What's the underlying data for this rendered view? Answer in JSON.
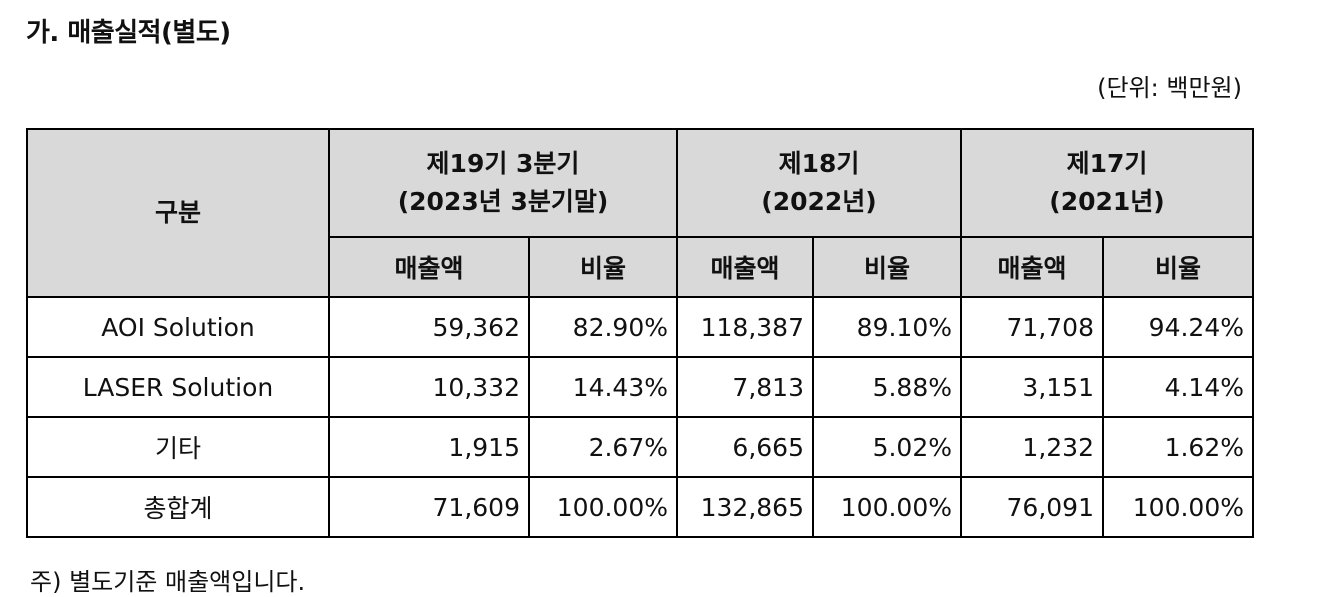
{
  "title": "가. 매출실적(별도)",
  "unit_note": "(단위: 백만원)",
  "table": {
    "category_header": "구분",
    "periods": [
      {
        "line1": "제19기 3분기",
        "line2": "(2023년 3분기말)"
      },
      {
        "line1": "제18기",
        "line2": "(2022년)"
      },
      {
        "line1": "제17기",
        "line2": "(2021년)"
      }
    ],
    "sub_headers": [
      "매출액",
      "비율",
      "매출액",
      "비율",
      "매출액",
      "비율"
    ],
    "rows": [
      {
        "category": "AOI Solution",
        "cells": [
          "59,362",
          "82.90%",
          "118,387",
          "89.10%",
          "71,708",
          "94.24%"
        ]
      },
      {
        "category": "LASER Solution",
        "cells": [
          "10,332",
          "14.43%",
          "7,813",
          "5.88%",
          "3,151",
          "4.14%"
        ]
      },
      {
        "category": "기타",
        "cells": [
          "1,915",
          "2.67%",
          "6,665",
          "5.02%",
          "1,232",
          "1.62%"
        ]
      },
      {
        "category": "총합계",
        "cells": [
          "71,609",
          "100.00%",
          "132,865",
          "100.00%",
          "76,091",
          "100.00%"
        ]
      }
    ]
  },
  "footnote": "주) 별도기준 매출액입니다."
}
